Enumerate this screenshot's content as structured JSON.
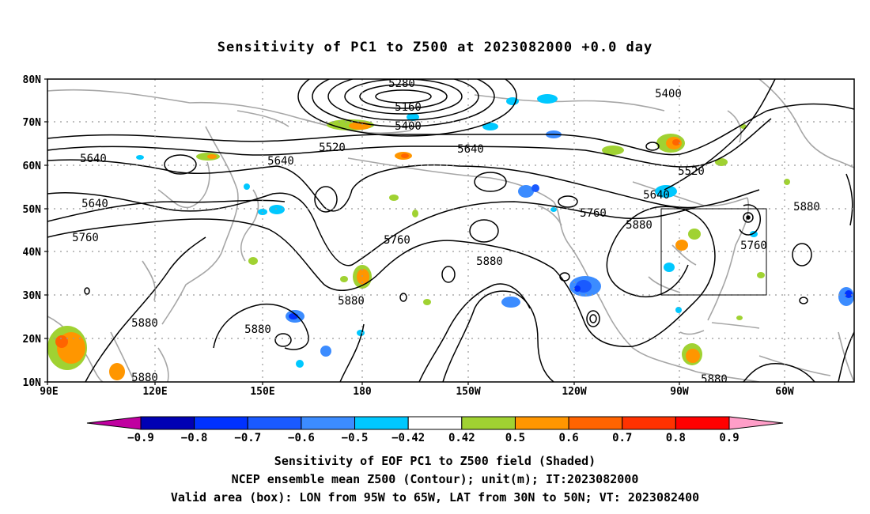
{
  "title": "Sensitivity of PC1 to Z500 at 2023082000 +0.0 day",
  "map": {
    "lat_labels": [
      "80N",
      "70N",
      "60N",
      "50N",
      "40N",
      "30N",
      "20N",
      "10N"
    ],
    "lon_labels": [
      "90E",
      "120E",
      "150E",
      "180",
      "150W",
      "120W",
      "90W",
      "60W"
    ],
    "contour_labels": [
      "5280",
      "5160",
      "5400",
      "5400",
      "5520",
      "5520",
      "5640",
      "5640",
      "5640",
      "5640",
      "5640",
      "5760",
      "5760",
      "5760",
      "5760",
      "5880",
      "5880",
      "5880",
      "5880",
      "5880",
      "5880",
      "5880",
      "5880"
    ],
    "colors": {
      "coast": "#a6a6a6",
      "contour": "#000000",
      "grid": "#999999"
    }
  },
  "colorbar": {
    "labels": [
      "−0.9",
      "−0.8",
      "−0.7",
      "−0.6",
      "−0.5",
      "−0.42",
      "0.42",
      "0.5",
      "0.6",
      "0.7",
      "0.8",
      "0.9"
    ],
    "colors": [
      "#c000a0",
      "#0000b4",
      "#0032ff",
      "#1a5aff",
      "#3c8cff",
      "#00c8ff",
      "#ffffff",
      "#a0d232",
      "#ff9600",
      "#ff6400",
      "#ff3200",
      "#ff0000",
      "#ff9ec8"
    ]
  },
  "footer": {
    "line1": "Sensitivity of EOF PC1 to Z500 field (Shaded)",
    "line2": "NCEP ensemble mean Z500 (Contour); unit(m); IT:2023082000",
    "line3": "Valid area (box): LON from 95W to 65W, LAT from 30N to 50N; VT: 2023082400"
  }
}
